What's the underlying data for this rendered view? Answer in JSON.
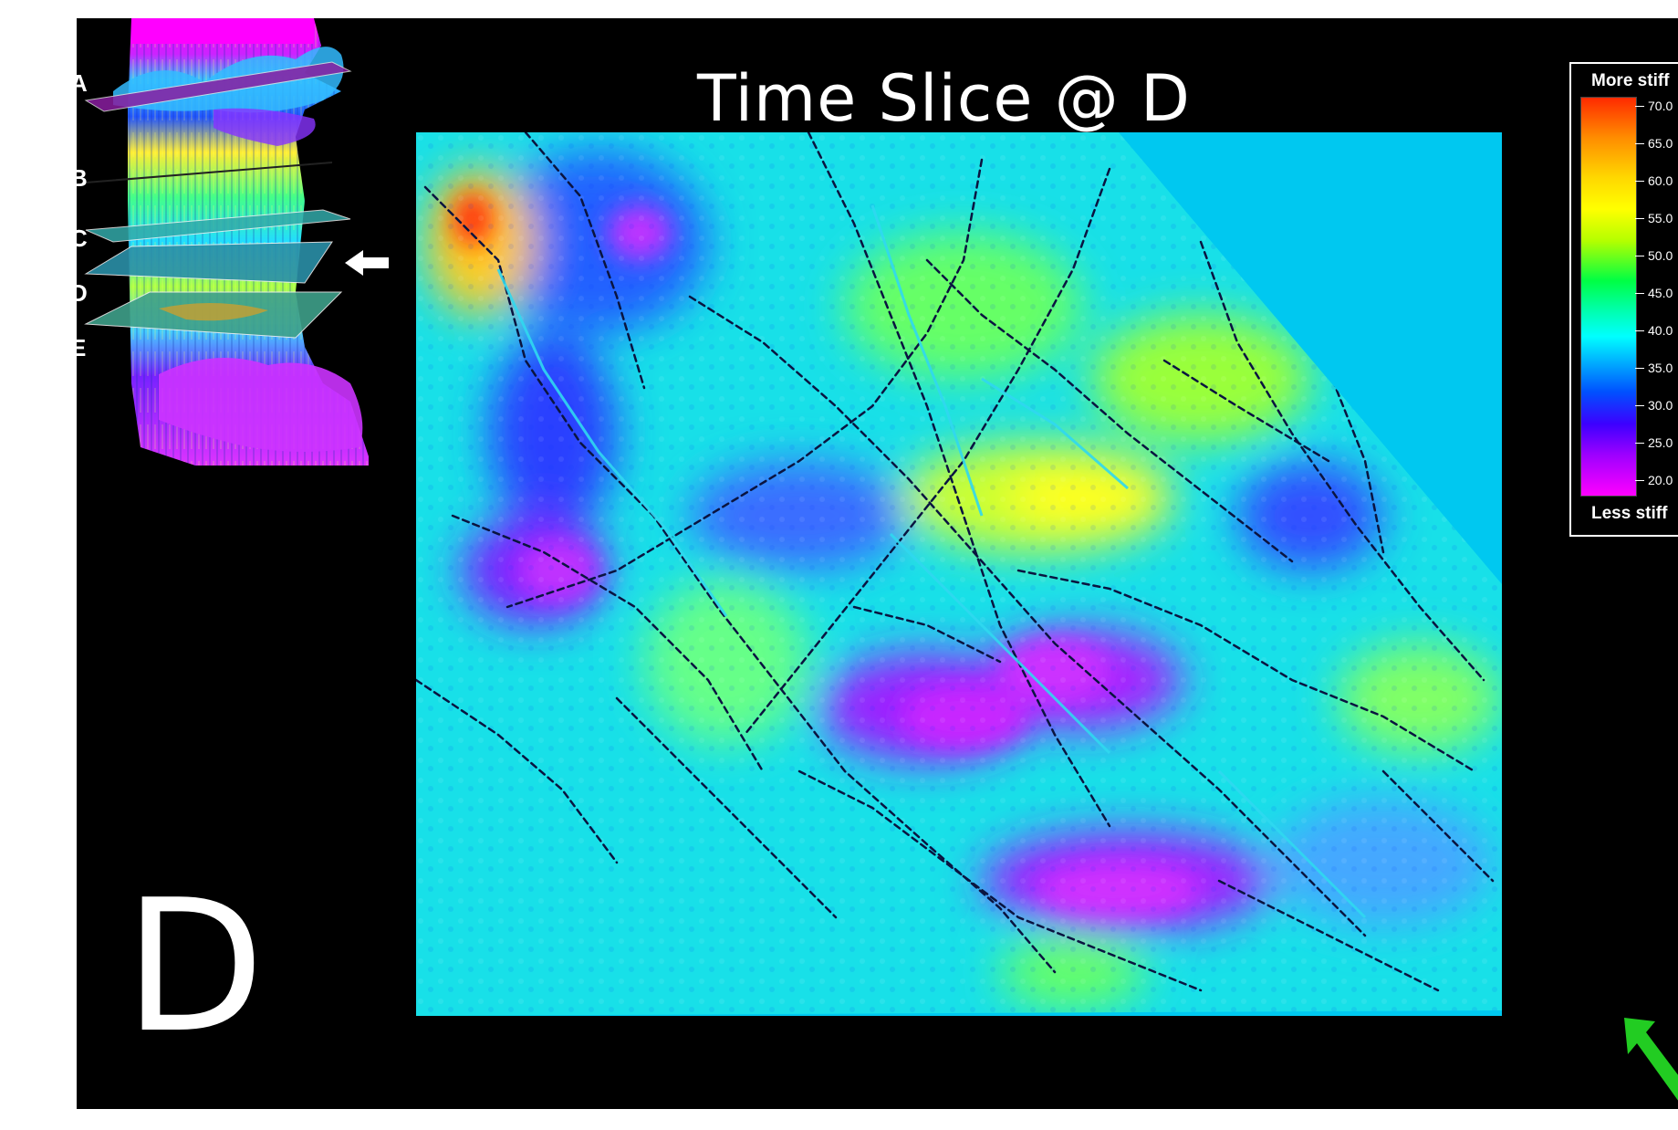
{
  "title": "Time Slice @ D",
  "panel_letter": "D",
  "inset": {
    "slice_labels": [
      "A",
      "B",
      "C",
      "D",
      "E"
    ],
    "selected_slice": "D"
  },
  "legend": {
    "top_label": "More stiff",
    "bottom_label": "Less stiff",
    "ticks": [
      "70.0",
      "65.0",
      "60.0",
      "55.0",
      "50.0",
      "45.0",
      "40.0",
      "35.0",
      "30.0",
      "25.0",
      "20.0"
    ],
    "gradient_colors": [
      "#ff2a00",
      "#ffd700",
      "#ffff00",
      "#00ff44",
      "#00ffff",
      "#0050ff",
      "#a000ff",
      "#ff00ff"
    ]
  },
  "icons": {
    "pointer": "left-arrow-icon",
    "north": "north-arrow-icon"
  },
  "colors": {
    "background": "#000000",
    "map_base": "#00c8f0",
    "north_arrow": "#22cc22"
  }
}
